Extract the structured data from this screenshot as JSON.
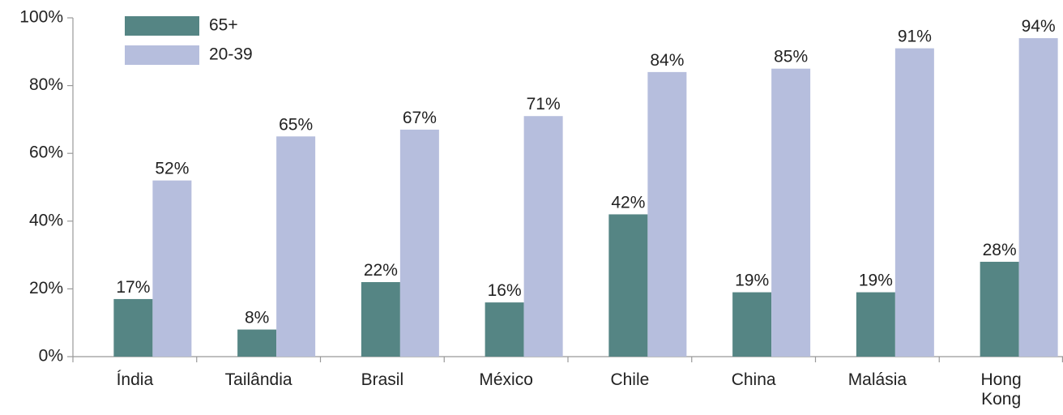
{
  "chart_data": {
    "type": "bar",
    "categories": [
      "Índia",
      "Tailândia",
      "Brasil",
      "México",
      "Chile",
      "China",
      "Malásia",
      "Hong Kong"
    ],
    "series": [
      {
        "name": "65+",
        "values": [
          17,
          8,
          22,
          16,
          42,
          19,
          19,
          28
        ],
        "labels": [
          "17%",
          "8%",
          "22%",
          "16%",
          "42%",
          "19%",
          "19%",
          "28%"
        ],
        "color": "#558584"
      },
      {
        "name": "20-39",
        "values": [
          52,
          65,
          67,
          71,
          84,
          85,
          91,
          94
        ],
        "labels": [
          "52%",
          "65%",
          "67%",
          "71%",
          "84%",
          "85%",
          "91%",
          "94%"
        ],
        "color": "#b6bedd"
      }
    ],
    "y_ticks": [
      0,
      20,
      40,
      60,
      80,
      100
    ],
    "y_tick_labels": [
      "0%",
      "20%",
      "40%",
      "60%",
      "80%",
      "100%"
    ],
    "ylim": [
      0,
      100
    ],
    "grid": false,
    "legend_position": "top-left",
    "title": "",
    "xlabel": "",
    "ylabel": ""
  }
}
